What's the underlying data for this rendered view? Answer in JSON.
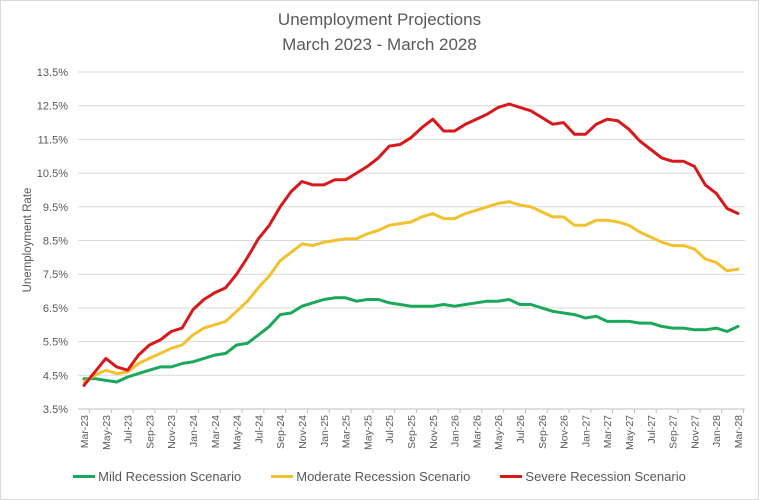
{
  "chart_data": {
    "type": "line",
    "title": "Unemployment Projections",
    "subtitle": "March 2023 - March 2028",
    "xlabel": "",
    "ylabel": "Unemployment Rate",
    "ylim": [
      3.5,
      13.5
    ],
    "yticks": [
      "3.5%",
      "4.5%",
      "5.5%",
      "6.5%",
      "7.5%",
      "8.5%",
      "9.5%",
      "10.5%",
      "11.5%",
      "12.5%",
      "13.5%"
    ],
    "ytick_values": [
      3.5,
      4.5,
      5.5,
      6.5,
      7.5,
      8.5,
      9.5,
      10.5,
      11.5,
      12.5,
      13.5
    ],
    "grid": true,
    "legend_position": "bottom",
    "x": [
      "Mar-23",
      "Apr-23",
      "May-23",
      "Jun-23",
      "Jul-23",
      "Aug-23",
      "Sep-23",
      "Oct-23",
      "Nov-23",
      "Dec-23",
      "Jan-24",
      "Feb-24",
      "Mar-24",
      "Apr-24",
      "May-24",
      "Jun-24",
      "Jul-24",
      "Aug-24",
      "Sep-24",
      "Oct-24",
      "Nov-24",
      "Dec-24",
      "Jan-25",
      "Feb-25",
      "Mar-25",
      "Apr-25",
      "May-25",
      "Jun-25",
      "Jul-25",
      "Aug-25",
      "Sep-25",
      "Oct-25",
      "Nov-25",
      "Dec-25",
      "Jan-26",
      "Feb-26",
      "Mar-26",
      "Apr-26",
      "May-26",
      "Jun-26",
      "Jul-26",
      "Aug-26",
      "Sep-26",
      "Oct-26",
      "Nov-26",
      "Dec-26",
      "Jan-27",
      "Feb-27",
      "Mar-27",
      "Apr-27",
      "May-27",
      "Jun-27",
      "Jul-27",
      "Aug-27",
      "Sep-27",
      "Oct-27",
      "Nov-27",
      "Dec-27",
      "Jan-28",
      "Feb-28",
      "Mar-28"
    ],
    "xtick_labels": [
      "Mar-23",
      "May-23",
      "Jul-23",
      "Sep-23",
      "Nov-23",
      "Jan-24",
      "Mar-24",
      "May-24",
      "Jul-24",
      "Sep-24",
      "Nov-24",
      "Jan-25",
      "Mar-25",
      "May-25",
      "Jul-25",
      "Sep-25",
      "Nov-25",
      "Jan-26",
      "Mar-26",
      "May-26",
      "Jul-26",
      "Sep-26",
      "Nov-26",
      "Jan-27",
      "Mar-27",
      "May-27",
      "Jul-27",
      "Sep-27",
      "Nov-27",
      "Jan-28",
      "Mar-28"
    ],
    "series": [
      {
        "name": "Mild Recession Scenario",
        "color": "#1aa85a",
        "values": [
          4.4,
          4.4,
          4.35,
          4.3,
          4.45,
          4.55,
          4.65,
          4.75,
          4.75,
          4.85,
          4.9,
          5.0,
          5.1,
          5.15,
          5.4,
          5.45,
          5.7,
          5.95,
          6.3,
          6.35,
          6.55,
          6.65,
          6.75,
          6.8,
          6.8,
          6.7,
          6.75,
          6.75,
          6.65,
          6.6,
          6.55,
          6.55,
          6.55,
          6.6,
          6.55,
          6.6,
          6.65,
          6.7,
          6.7,
          6.75,
          6.6,
          6.6,
          6.5,
          6.4,
          6.35,
          6.3,
          6.2,
          6.25,
          6.1,
          6.1,
          6.1,
          6.05,
          6.05,
          5.95,
          5.9,
          5.9,
          5.85,
          5.85,
          5.9,
          5.8,
          5.95
        ]
      },
      {
        "name": "Moderate Recession Scenario",
        "color": "#f2c12e",
        "values": [
          4.3,
          4.5,
          4.65,
          4.55,
          4.6,
          4.85,
          5.0,
          5.15,
          5.3,
          5.4,
          5.7,
          5.9,
          6.0,
          6.1,
          6.4,
          6.7,
          7.1,
          7.45,
          7.9,
          8.15,
          8.4,
          8.35,
          8.45,
          8.5,
          8.55,
          8.55,
          8.7,
          8.8,
          8.95,
          9.0,
          9.05,
          9.2,
          9.3,
          9.15,
          9.15,
          9.3,
          9.4,
          9.5,
          9.6,
          9.65,
          9.55,
          9.5,
          9.35,
          9.2,
          9.2,
          8.95,
          8.95,
          9.1,
          9.1,
          9.05,
          8.95,
          8.75,
          8.6,
          8.45,
          8.35,
          8.35,
          8.25,
          7.95,
          7.85,
          7.6,
          7.65
        ]
      },
      {
        "name": "Severe Recession Scenario",
        "color": "#d7191c",
        "values": [
          4.2,
          4.6,
          5.0,
          4.75,
          4.65,
          5.1,
          5.4,
          5.55,
          5.8,
          5.9,
          6.45,
          6.75,
          6.95,
          7.1,
          7.5,
          8.0,
          8.55,
          8.95,
          9.5,
          9.95,
          10.25,
          10.15,
          10.15,
          10.3,
          10.3,
          10.5,
          10.7,
          10.95,
          11.3,
          11.35,
          11.55,
          11.85,
          12.1,
          11.75,
          11.75,
          11.95,
          12.1,
          12.25,
          12.45,
          12.55,
          12.45,
          12.35,
          12.15,
          11.95,
          12.0,
          11.65,
          11.65,
          11.95,
          12.1,
          12.05,
          11.8,
          11.45,
          11.2,
          10.95,
          10.85,
          10.85,
          10.7,
          10.15,
          9.9,
          9.45,
          9.3
        ]
      }
    ]
  }
}
